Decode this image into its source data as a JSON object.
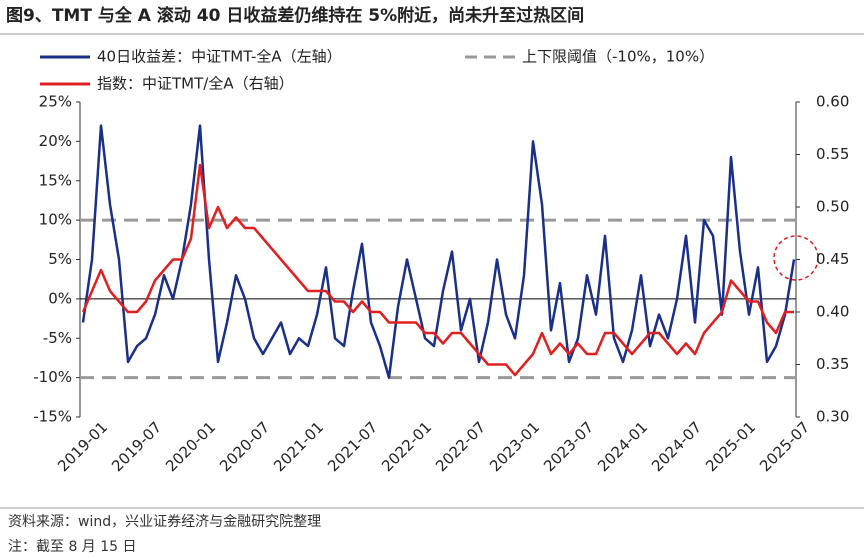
{
  "chart_data": {
    "type": "line",
    "title": "图9、TMT 与全 A 滚动 40 日收益差仍维持在 5%附近，尚未升至过热区间",
    "source": "资料来源：wind，兴业证券经济与金融研究院整理",
    "note": "注：截至 8 月 15 日",
    "x": [
      "2019-01",
      "2019-02",
      "2019-03",
      "2019-04",
      "2019-05",
      "2019-06",
      "2019-07",
      "2019-08",
      "2019-09",
      "2019-10",
      "2019-11",
      "2019-12",
      "2020-01",
      "2020-02",
      "2020-03",
      "2020-04",
      "2020-05",
      "2020-06",
      "2020-07",
      "2020-08",
      "2020-09",
      "2020-10",
      "2020-11",
      "2020-12",
      "2021-01",
      "2021-02",
      "2021-03",
      "2021-04",
      "2021-05",
      "2021-06",
      "2021-07",
      "2021-08",
      "2021-09",
      "2021-10",
      "2021-11",
      "2021-12",
      "2022-01",
      "2022-02",
      "2022-03",
      "2022-04",
      "2022-05",
      "2022-06",
      "2022-07",
      "2022-08",
      "2022-09",
      "2022-10",
      "2022-11",
      "2022-12",
      "2023-01",
      "2023-02",
      "2023-03",
      "2023-04",
      "2023-05",
      "2023-06",
      "2023-07",
      "2023-08",
      "2023-09",
      "2023-10",
      "2023-11",
      "2023-12",
      "2024-01",
      "2024-02",
      "2024-03",
      "2024-04",
      "2024-05",
      "2024-06",
      "2024-07",
      "2024-08",
      "2024-09",
      "2024-10",
      "2024-11",
      "2024-12",
      "2025-01",
      "2025-02",
      "2025-03",
      "2025-04",
      "2025-05",
      "2025-06",
      "2025-07",
      "2025-08"
    ],
    "xticks": [
      "2019-01",
      "2019-07",
      "2020-01",
      "2020-07",
      "2021-01",
      "2021-07",
      "2022-01",
      "2022-07",
      "2023-01",
      "2023-07",
      "2024-01",
      "2024-07",
      "2025-01",
      "2025-07"
    ],
    "series": [
      {
        "name": "40日收益差：中证TMT-全A（左轴）",
        "color": "#1a2f8a",
        "axis": "y",
        "values": [
          -3,
          5,
          22,
          12,
          5,
          -8,
          -6,
          -5,
          -2,
          3,
          0,
          5,
          12,
          22,
          5,
          -8,
          -3,
          3,
          0,
          -5,
          -7,
          -5,
          -3,
          -7,
          -5,
          -6,
          -2,
          4,
          -5,
          -6,
          1,
          7,
          -3,
          -6,
          -10,
          -1,
          5,
          0,
          -5,
          -6,
          1,
          6,
          -4,
          0,
          -8,
          -3,
          5,
          -2,
          -5,
          3,
          20,
          12,
          -4,
          2,
          -8,
          -5,
          3,
          -2,
          8,
          -5,
          -8,
          -4,
          3,
          -6,
          -2,
          -5,
          0,
          8,
          -3,
          10,
          8,
          -2,
          18,
          6,
          -2,
          4,
          -8,
          -6,
          -2,
          5
        ]
      },
      {
        "name": "指数：中证TMT/全A（右轴）",
        "color": "#e02020",
        "axis": "y2",
        "values": [
          0.4,
          0.42,
          0.44,
          0.42,
          0.41,
          0.4,
          0.4,
          0.41,
          0.43,
          0.44,
          0.45,
          0.45,
          0.47,
          0.54,
          0.48,
          0.5,
          0.48,
          0.49,
          0.48,
          0.48,
          0.47,
          0.46,
          0.45,
          0.44,
          0.43,
          0.42,
          0.42,
          0.42,
          0.41,
          0.41,
          0.4,
          0.41,
          0.4,
          0.4,
          0.39,
          0.39,
          0.39,
          0.39,
          0.38,
          0.38,
          0.37,
          0.38,
          0.38,
          0.37,
          0.36,
          0.35,
          0.35,
          0.35,
          0.34,
          0.35,
          0.36,
          0.38,
          0.36,
          0.37,
          0.36,
          0.37,
          0.36,
          0.36,
          0.38,
          0.38,
          0.37,
          0.36,
          0.37,
          0.38,
          0.38,
          0.37,
          0.36,
          0.37,
          0.36,
          0.38,
          0.39,
          0.4,
          0.43,
          0.42,
          0.41,
          0.41,
          0.39,
          0.38,
          0.4,
          0.4
        ]
      }
    ],
    "threshold": {
      "name": "上下限阈值（-10%，10%）",
      "values": [
        -10,
        10
      ],
      "color": "#999999"
    },
    "ylim": [
      -15,
      25
    ],
    "yticks": [
      {
        "value": -15,
        "label": "-15%"
      },
      {
        "value": -10,
        "label": "-10%"
      },
      {
        "value": -5,
        "label": "-5%"
      },
      {
        "value": 0,
        "label": "0%"
      },
      {
        "value": 5,
        "label": "5%"
      },
      {
        "value": 10,
        "label": "10%"
      },
      {
        "value": 15,
        "label": "15%"
      },
      {
        "value": 20,
        "label": "20%"
      },
      {
        "value": 25,
        "label": "25%"
      }
    ],
    "y2lim": [
      0.3,
      0.6
    ],
    "y2ticks": [
      {
        "value": 0.3,
        "label": "0.30"
      },
      {
        "value": 0.35,
        "label": "0.35"
      },
      {
        "value": 0.4,
        "label": "0.40"
      },
      {
        "value": 0.45,
        "label": "0.45"
      },
      {
        "value": 0.5,
        "label": "0.50"
      },
      {
        "value": 0.55,
        "label": "0.55"
      },
      {
        "value": 0.6,
        "label": "0.60"
      }
    ]
  }
}
